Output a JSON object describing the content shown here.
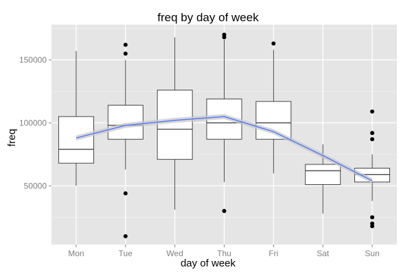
{
  "chart_data": {
    "type": "box",
    "title": "freq by day of week",
    "xlabel": "day of week",
    "ylabel": "freq",
    "categories": [
      "Mon",
      "Tue",
      "Wed",
      "Thu",
      "Fri",
      "Sat",
      "Sun"
    ],
    "ylim": [
      0,
      175000
    ],
    "yticks": [
      50000,
      100000,
      150000
    ],
    "ytick_labels": [
      "50000",
      "100000",
      "150000"
    ],
    "grid": true,
    "boxes": [
      {
        "category": "Mon",
        "lower_whisker": 50000,
        "q1": 68000,
        "median": 79000,
        "q3": 105000,
        "upper_whisker": 157000,
        "outliers": []
      },
      {
        "category": "Tue",
        "lower_whisker": 63000,
        "q1": 87000,
        "median": 98000,
        "q3": 114000,
        "upper_whisker": 150000,
        "outliers": [
          162000,
          155000,
          44000,
          10000
        ]
      },
      {
        "category": "Wed",
        "lower_whisker": 31000,
        "q1": 71000,
        "median": 95000,
        "q3": 126000,
        "upper_whisker": 168000,
        "outliers": []
      },
      {
        "category": "Thu",
        "lower_whisker": 53000,
        "q1": 87000,
        "median": 100000,
        "q3": 119000,
        "upper_whisker": 166000,
        "outliers": [
          170000,
          168000,
          30000
        ]
      },
      {
        "category": "Fri",
        "lower_whisker": 60000,
        "q1": 87000,
        "median": 100000,
        "q3": 117000,
        "upper_whisker": 158000,
        "outliers": [
          163000
        ]
      },
      {
        "category": "Sat",
        "lower_whisker": 28000,
        "q1": 51000,
        "median": 62000,
        "q3": 67000,
        "upper_whisker": 83000,
        "outliers": []
      },
      {
        "category": "Sun",
        "lower_whisker": 38000,
        "q1": 53000,
        "median": 59000,
        "q3": 64000,
        "upper_whisker": 75000,
        "outliers": [
          109000,
          92000,
          87000,
          25000,
          20000,
          18000
        ]
      }
    ],
    "trend": {
      "type": "line",
      "values": [
        88000,
        98000,
        102000,
        105000,
        93000,
        74000,
        54000
      ],
      "ribbon_halfwidth": 2000,
      "color": "#4d74ff",
      "ribbon_color": "#c8c8c8"
    },
    "colors": {
      "panel_background": "#e5e5e5",
      "grid_major": "#ffffff",
      "grid_minor": "#f2f2f2",
      "box_fill": "#ffffff",
      "box_stroke": "#333333",
      "outlier": "#000000"
    }
  }
}
